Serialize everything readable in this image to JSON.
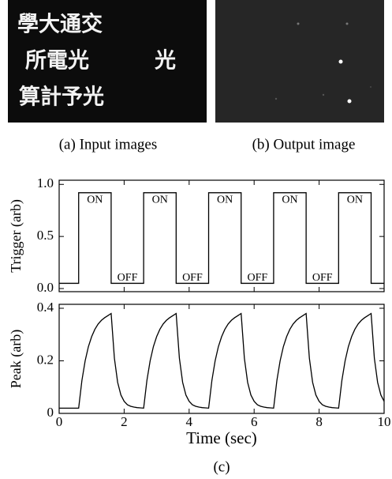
{
  "figure": {
    "panels": [
      {
        "caption": "(a) Input images",
        "lines": [
          "學大通交",
          "所電光",
          "算計予光"
        ],
        "side_text": "光"
      },
      {
        "caption": "(b) Output image"
      }
    ],
    "caption": "(c)"
  },
  "chart_data": [
    {
      "type": "line",
      "ylabel": "Trigger (arb)",
      "xlim": [
        0,
        10
      ],
      "xticks": [
        0,
        2,
        4,
        6,
        8,
        10
      ],
      "ylim": [
        -0.03,
        1.04
      ],
      "yticks": [
        {
          "value": 0,
          "label": "0.0"
        },
        {
          "value": 0.5,
          "label": "0.5"
        },
        {
          "value": 1,
          "label": "1.0"
        }
      ],
      "x": [
        0,
        0.6,
        0.6,
        1.6,
        1.6,
        2.6,
        2.6,
        3.6,
        3.6,
        4.6,
        4.6,
        5.6,
        5.6,
        6.6,
        6.6,
        7.6,
        7.6,
        8.6,
        8.6,
        9.6,
        9.6,
        10
      ],
      "series": [
        {
          "color": "#000000",
          "values": [
            0.05,
            0.05,
            0.92,
            0.92,
            0.05,
            0.05,
            0.92,
            0.92,
            0.05,
            0.05,
            0.92,
            0.92,
            0.05,
            0.05,
            0.92,
            0.92,
            0.05,
            0.05,
            0.92,
            0.92,
            0.05,
            0.05
          ]
        }
      ],
      "annotations": [
        {
          "text": "ON",
          "x": 1.1,
          "y": 0.85
        },
        {
          "text": "OFF",
          "x": 2.1,
          "y": 0.1
        },
        {
          "text": "ON",
          "x": 3.1,
          "y": 0.85
        },
        {
          "text": "OFF",
          "x": 4.1,
          "y": 0.1
        },
        {
          "text": "ON",
          "x": 5.1,
          "y": 0.85
        },
        {
          "text": "OFF",
          "x": 6.1,
          "y": 0.1
        },
        {
          "text": "ON",
          "x": 7.1,
          "y": 0.85
        },
        {
          "text": "OFF",
          "x": 8.1,
          "y": 0.1
        },
        {
          "text": "ON",
          "x": 9.1,
          "y": 0.85
        }
      ]
    },
    {
      "type": "line",
      "ylabel": "Peak (arb)",
      "xlabel": "Time (sec)",
      "xlim": [
        0,
        10
      ],
      "xticks": [
        0,
        2,
        4,
        6,
        8,
        10
      ],
      "ylim": [
        0,
        0.415
      ],
      "yticks": [
        0,
        0.2,
        0.4
      ],
      "x": [
        0,
        0.1,
        0.2,
        0.3,
        0.4,
        0.5,
        0.6,
        0.7,
        0.8,
        0.9,
        1,
        1.1,
        1.2,
        1.3,
        1.4,
        1.5,
        1.6,
        1.7,
        1.8,
        1.9,
        2,
        2.1,
        2.2,
        2.3,
        2.4,
        2.5,
        2.6,
        2.7,
        2.8,
        2.9,
        3,
        3.1,
        3.2,
        3.3,
        3.4,
        3.5,
        3.6,
        3.7,
        3.8,
        3.9,
        4,
        4.1,
        4.2,
        4.3,
        4.4,
        4.5,
        4.6,
        4.7,
        4.8,
        4.9,
        5,
        5.1,
        5.2,
        5.3,
        5.4,
        5.5,
        5.6,
        5.7,
        5.8,
        5.9,
        6,
        6.1,
        6.2,
        6.3,
        6.4,
        6.5,
        6.6,
        6.7,
        6.8,
        6.9,
        7,
        7.1,
        7.2,
        7.3,
        7.4,
        7.5,
        7.6,
        7.7,
        7.8,
        7.9,
        8,
        8.1,
        8.2,
        8.3,
        8.4,
        8.5,
        8.6,
        8.7,
        8.8,
        8.9,
        9,
        9.1,
        9.2,
        9.3,
        9.4,
        9.5,
        9.6,
        9.7,
        9.8,
        9.9,
        10
      ],
      "series": [
        {
          "color": "#000000",
          "values": [
            0.02,
            0.02,
            0.02,
            0.02,
            0.02,
            0.02,
            0.02,
            0.125,
            0.2,
            0.254,
            0.292,
            0.32,
            0.34,
            0.354,
            0.364,
            0.372,
            0.38,
            0.21,
            0.118,
            0.07,
            0.046,
            0.033,
            0.027,
            0.024,
            0.022,
            0.021,
            0.02,
            0.125,
            0.2,
            0.254,
            0.292,
            0.32,
            0.34,
            0.354,
            0.364,
            0.372,
            0.38,
            0.21,
            0.118,
            0.07,
            0.046,
            0.033,
            0.027,
            0.024,
            0.022,
            0.021,
            0.02,
            0.125,
            0.2,
            0.254,
            0.292,
            0.32,
            0.34,
            0.354,
            0.364,
            0.372,
            0.38,
            0.21,
            0.118,
            0.07,
            0.046,
            0.033,
            0.027,
            0.024,
            0.022,
            0.021,
            0.02,
            0.125,
            0.2,
            0.254,
            0.292,
            0.32,
            0.34,
            0.354,
            0.364,
            0.372,
            0.38,
            0.21,
            0.118,
            0.07,
            0.046,
            0.033,
            0.027,
            0.024,
            0.022,
            0.021,
            0.02,
            0.125,
            0.2,
            0.254,
            0.292,
            0.32,
            0.34,
            0.354,
            0.364,
            0.372,
            0.38,
            0.21,
            0.118,
            0.07,
            0.046
          ]
        }
      ]
    }
  ]
}
